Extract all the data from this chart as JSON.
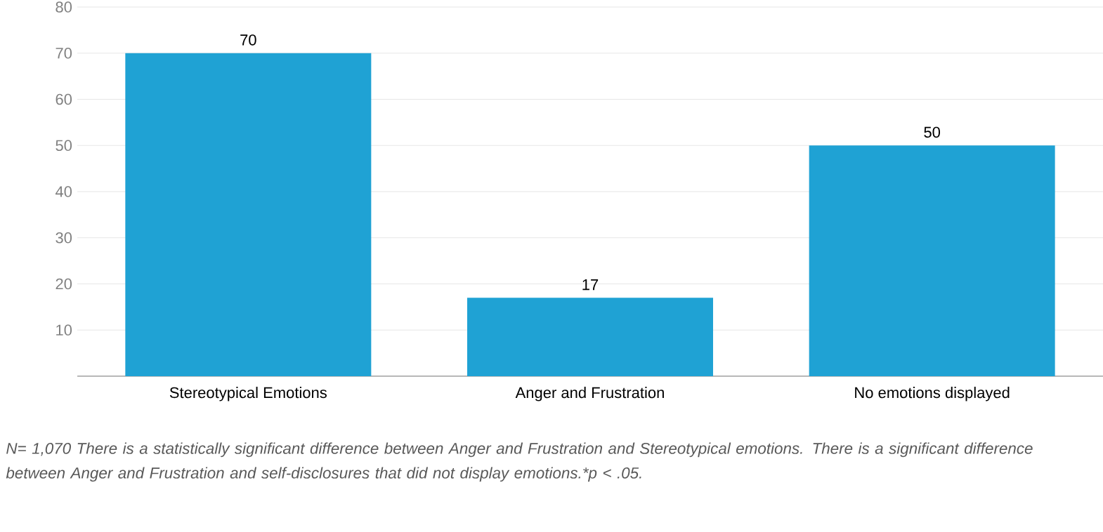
{
  "chart_data": {
    "type": "bar",
    "categories": [
      "Stereotypical Emotions",
      "Anger and Frustration",
      "No emotions displayed"
    ],
    "values": [
      70,
      17,
      50
    ],
    "color": "#1fa2d4",
    "data_labels": true,
    "ylim": [
      0,
      80
    ],
    "yticks": [
      10,
      20,
      30,
      40,
      50,
      60,
      70,
      80
    ],
    "grid": "y",
    "annotations": [
      "N= 1,070 There is a statistically significant difference between Anger and Frustration and Stereotypical emotions. There is a significant difference between Anger and Frustration and self-disclosures that did not display emotions.*p < .05."
    ]
  }
}
